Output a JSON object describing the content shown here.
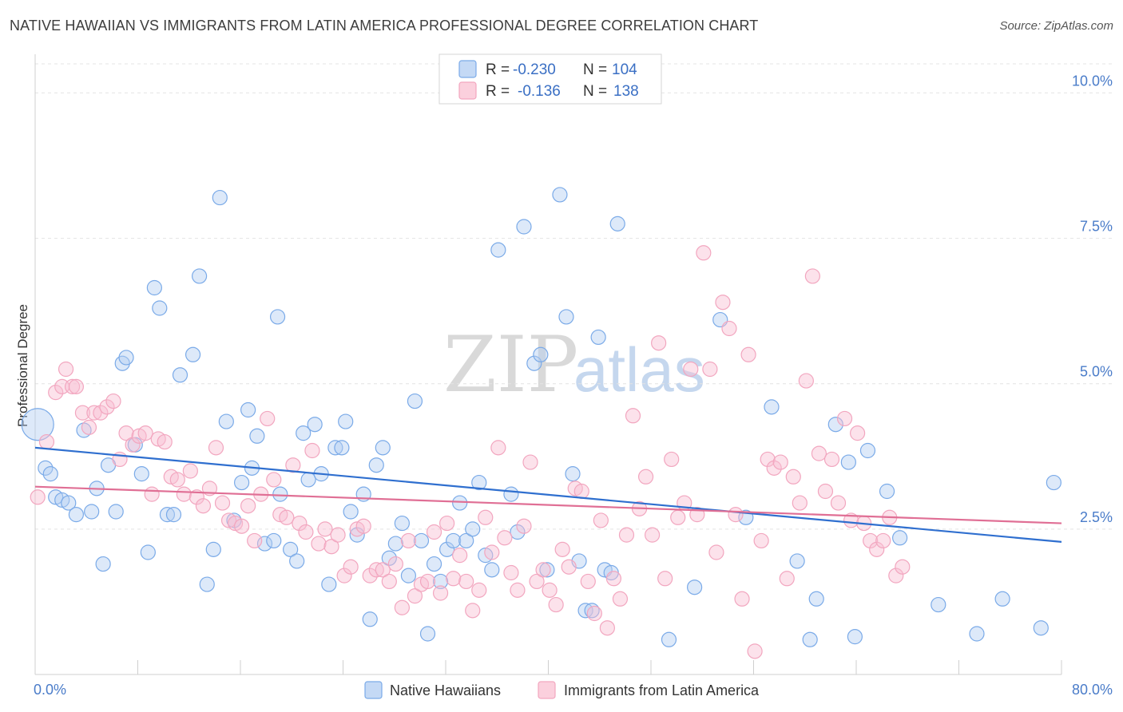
{
  "title": "NATIVE HAWAIIAN VS IMMIGRANTS FROM LATIN AMERICA PROFESSIONAL DEGREE CORRELATION CHART",
  "source": "Source: ZipAtlas.com",
  "watermark": {
    "zip": "ZIP",
    "atlas": "atlas"
  },
  "legend_top": [
    {
      "r_label": "R =",
      "r_value": "-0.230",
      "n_label": "N =",
      "n_value": "104",
      "color": "#7aaae8"
    },
    {
      "r_label": "R =",
      "r_value": "-0.136",
      "n_label": "N =",
      "n_value": "138",
      "color": "#f2a6bf"
    }
  ],
  "legend_bottom": [
    {
      "label": "Native Hawaiians",
      "color": "#7aaae8"
    },
    {
      "label": "Immigrants from Latin America",
      "color": "#f2a6bf"
    }
  ],
  "chart_data": {
    "type": "scatter",
    "title": "NATIVE HAWAIIAN VS IMMIGRANTS FROM LATIN AMERICA PROFESSIONAL DEGREE CORRELATION CHART",
    "xlabel": "",
    "ylabel": "Professional Degree",
    "xlim": [
      0,
      80
    ],
    "ylim": [
      0,
      10.5
    ],
    "x_tick_labels": [
      "0.0%",
      "80.0%"
    ],
    "y_ticks": [
      2.5,
      5.0,
      7.5,
      10.0
    ],
    "y_tick_labels": [
      "2.5%",
      "5.0%",
      "7.5%",
      "10.0%"
    ],
    "grid": true,
    "legend_position": "top-center",
    "series": [
      {
        "name": "Native Hawaiians",
        "color": "#7aaae8",
        "line_color": "#2f6fcf",
        "trend": {
          "x": [
            0,
            80
          ],
          "y": [
            3.9,
            2.28
          ]
        },
        "points": [
          [
            0.2,
            4.3
          ],
          [
            0.8,
            3.55
          ],
          [
            1.2,
            3.45
          ],
          [
            1.6,
            3.05
          ],
          [
            2.1,
            3.0
          ],
          [
            2.6,
            2.95
          ],
          [
            3.2,
            2.75
          ],
          [
            3.8,
            4.2
          ],
          [
            4.4,
            2.8
          ],
          [
            4.8,
            3.2
          ],
          [
            5.3,
            1.9
          ],
          [
            5.7,
            3.6
          ],
          [
            6.3,
            2.8
          ],
          [
            6.8,
            5.35
          ],
          [
            7.1,
            5.45
          ],
          [
            7.8,
            3.95
          ],
          [
            8.3,
            3.45
          ],
          [
            8.8,
            2.1
          ],
          [
            9.3,
            6.65
          ],
          [
            9.7,
            6.3
          ],
          [
            10.3,
            2.75
          ],
          [
            10.8,
            2.75
          ],
          [
            11.3,
            5.15
          ],
          [
            12.3,
            5.5
          ],
          [
            12.8,
            6.85
          ],
          [
            13.4,
            1.55
          ],
          [
            13.9,
            2.15
          ],
          [
            14.4,
            8.2
          ],
          [
            14.9,
            4.35
          ],
          [
            15.5,
            2.65
          ],
          [
            16.1,
            3.3
          ],
          [
            16.6,
            4.55
          ],
          [
            16.9,
            3.55
          ],
          [
            17.3,
            4.1
          ],
          [
            17.9,
            2.25
          ],
          [
            18.6,
            2.3
          ],
          [
            18.9,
            6.15
          ],
          [
            19.1,
            3.1
          ],
          [
            19.9,
            2.15
          ],
          [
            20.4,
            1.95
          ],
          [
            20.9,
            4.15
          ],
          [
            21.3,
            3.35
          ],
          [
            21.8,
            4.3
          ],
          [
            22.3,
            3.45
          ],
          [
            22.9,
            1.55
          ],
          [
            23.4,
            3.9
          ],
          [
            23.9,
            3.9
          ],
          [
            24.2,
            4.35
          ],
          [
            24.6,
            2.8
          ],
          [
            25.1,
            2.4
          ],
          [
            25.6,
            3.1
          ],
          [
            26.1,
            0.95
          ],
          [
            26.6,
            3.6
          ],
          [
            27.1,
            3.9
          ],
          [
            27.6,
            2.0
          ],
          [
            28.1,
            2.25
          ],
          [
            28.6,
            2.6
          ],
          [
            29.1,
            1.7
          ],
          [
            29.6,
            4.7
          ],
          [
            30.1,
            2.3
          ],
          [
            30.6,
            0.7
          ],
          [
            31.1,
            1.9
          ],
          [
            31.6,
            1.6
          ],
          [
            32.1,
            2.15
          ],
          [
            32.6,
            2.3
          ],
          [
            33.1,
            2.95
          ],
          [
            33.6,
            2.3
          ],
          [
            34.1,
            2.5
          ],
          [
            34.6,
            3.3
          ],
          [
            35.1,
            2.05
          ],
          [
            35.6,
            1.8
          ],
          [
            36.1,
            7.3
          ],
          [
            37.1,
            3.1
          ],
          [
            37.6,
            2.45
          ],
          [
            38.1,
            7.7
          ],
          [
            38.9,
            5.35
          ],
          [
            39.4,
            5.5
          ],
          [
            39.9,
            1.8
          ],
          [
            40.9,
            8.25
          ],
          [
            41.4,
            6.15
          ],
          [
            41.9,
            3.45
          ],
          [
            42.4,
            1.95
          ],
          [
            42.9,
            1.1
          ],
          [
            43.4,
            1.1
          ],
          [
            43.9,
            5.8
          ],
          [
            44.4,
            1.8
          ],
          [
            44.9,
            1.75
          ],
          [
            45.4,
            7.75
          ],
          [
            49.4,
            0.6
          ],
          [
            51.4,
            1.5
          ],
          [
            53.4,
            6.1
          ],
          [
            55.4,
            2.7
          ],
          [
            57.4,
            4.6
          ],
          [
            59.4,
            1.95
          ],
          [
            60.4,
            0.6
          ],
          [
            60.9,
            1.3
          ],
          [
            62.4,
            4.3
          ],
          [
            63.4,
            3.65
          ],
          [
            63.9,
            0.65
          ],
          [
            64.9,
            3.85
          ],
          [
            66.4,
            3.15
          ],
          [
            67.4,
            2.35
          ],
          [
            70.4,
            1.2
          ],
          [
            73.4,
            0.7
          ],
          [
            75.4,
            1.3
          ],
          [
            78.4,
            0.8
          ],
          [
            79.4,
            3.3
          ]
        ]
      },
      {
        "name": "Immigrants from Latin America",
        "color": "#f2a6bf",
        "line_color": "#e06f95",
        "trend": {
          "x": [
            0,
            80
          ],
          "y": [
            3.23,
            2.6
          ]
        },
        "points": [
          [
            0.2,
            3.05
          ],
          [
            0.9,
            4.0
          ],
          [
            1.6,
            4.85
          ],
          [
            2.1,
            4.95
          ],
          [
            2.4,
            5.25
          ],
          [
            2.9,
            4.95
          ],
          [
            3.2,
            4.95
          ],
          [
            3.7,
            4.5
          ],
          [
            4.2,
            4.25
          ],
          [
            4.6,
            4.5
          ],
          [
            5.1,
            4.5
          ],
          [
            5.6,
            4.6
          ],
          [
            6.1,
            4.7
          ],
          [
            6.6,
            3.7
          ],
          [
            7.1,
            4.15
          ],
          [
            7.6,
            3.95
          ],
          [
            8.1,
            4.1
          ],
          [
            8.6,
            4.15
          ],
          [
            9.1,
            3.1
          ],
          [
            9.6,
            4.05
          ],
          [
            10.1,
            4.0
          ],
          [
            10.6,
            3.4
          ],
          [
            11.1,
            3.35
          ],
          [
            11.6,
            3.1
          ],
          [
            12.1,
            3.5
          ],
          [
            12.6,
            3.05
          ],
          [
            13.1,
            2.9
          ],
          [
            13.6,
            3.2
          ],
          [
            14.1,
            3.9
          ],
          [
            14.6,
            2.95
          ],
          [
            15.1,
            2.65
          ],
          [
            15.6,
            2.6
          ],
          [
            16.1,
            2.55
          ],
          [
            16.6,
            2.9
          ],
          [
            17.1,
            2.3
          ],
          [
            17.6,
            3.1
          ],
          [
            18.1,
            4.4
          ],
          [
            18.6,
            3.35
          ],
          [
            19.1,
            2.75
          ],
          [
            19.6,
            2.7
          ],
          [
            20.1,
            3.6
          ],
          [
            20.6,
            2.6
          ],
          [
            21.1,
            2.45
          ],
          [
            21.6,
            3.85
          ],
          [
            22.1,
            2.25
          ],
          [
            22.6,
            2.5
          ],
          [
            23.1,
            2.2
          ],
          [
            23.6,
            2.4
          ],
          [
            24.1,
            1.7
          ],
          [
            24.6,
            1.85
          ],
          [
            25.1,
            2.5
          ],
          [
            25.6,
            2.55
          ],
          [
            26.1,
            1.7
          ],
          [
            26.6,
            1.8
          ],
          [
            27.1,
            1.8
          ],
          [
            27.6,
            1.6
          ],
          [
            28.1,
            1.9
          ],
          [
            28.6,
            1.15
          ],
          [
            29.1,
            2.3
          ],
          [
            29.6,
            1.35
          ],
          [
            30.1,
            1.55
          ],
          [
            30.6,
            1.6
          ],
          [
            31.1,
            2.45
          ],
          [
            31.6,
            1.4
          ],
          [
            32.1,
            2.6
          ],
          [
            32.6,
            1.65
          ],
          [
            33.1,
            2.05
          ],
          [
            33.6,
            1.6
          ],
          [
            34.1,
            1.1
          ],
          [
            34.6,
            1.45
          ],
          [
            35.1,
            2.7
          ],
          [
            35.6,
            2.1
          ],
          [
            36.1,
            3.9
          ],
          [
            36.6,
            2.35
          ],
          [
            37.1,
            1.75
          ],
          [
            37.6,
            1.45
          ],
          [
            38.1,
            2.55
          ],
          [
            38.6,
            3.65
          ],
          [
            39.1,
            1.6
          ],
          [
            39.6,
            1.8
          ],
          [
            40.1,
            1.45
          ],
          [
            40.6,
            1.2
          ],
          [
            41.1,
            2.15
          ],
          [
            41.6,
            1.85
          ],
          [
            42.1,
            3.2
          ],
          [
            42.6,
            3.15
          ],
          [
            43.1,
            1.6
          ],
          [
            43.6,
            1.05
          ],
          [
            44.1,
            2.65
          ],
          [
            44.6,
            0.8
          ],
          [
            45.1,
            1.65
          ],
          [
            45.6,
            1.3
          ],
          [
            46.1,
            2.4
          ],
          [
            46.6,
            4.45
          ],
          [
            47.1,
            2.85
          ],
          [
            47.6,
            3.4
          ],
          [
            48.1,
            2.4
          ],
          [
            48.6,
            5.7
          ],
          [
            49.1,
            1.65
          ],
          [
            49.6,
            3.7
          ],
          [
            50.1,
            2.7
          ],
          [
            50.6,
            2.95
          ],
          [
            51.1,
            5.25
          ],
          [
            51.6,
            2.75
          ],
          [
            52.1,
            7.25
          ],
          [
            52.6,
            5.25
          ],
          [
            53.1,
            2.1
          ],
          [
            53.6,
            6.4
          ],
          [
            54.1,
            5.95
          ],
          [
            54.6,
            2.75
          ],
          [
            55.1,
            1.3
          ],
          [
            55.6,
            5.5
          ],
          [
            56.1,
            0.4
          ],
          [
            56.6,
            2.3
          ],
          [
            57.1,
            3.7
          ],
          [
            57.6,
            3.55
          ],
          [
            58.1,
            3.65
          ],
          [
            58.6,
            1.65
          ],
          [
            59.1,
            3.4
          ],
          [
            59.6,
            2.95
          ],
          [
            60.1,
            5.05
          ],
          [
            60.6,
            6.85
          ],
          [
            61.1,
            3.8
          ],
          [
            61.6,
            3.15
          ],
          [
            62.1,
            3.7
          ],
          [
            62.6,
            2.95
          ],
          [
            63.1,
            4.4
          ],
          [
            63.6,
            2.65
          ],
          [
            64.1,
            4.15
          ],
          [
            64.6,
            2.6
          ],
          [
            65.1,
            2.3
          ],
          [
            65.6,
            2.15
          ],
          [
            66.1,
            2.3
          ],
          [
            66.6,
            2.7
          ],
          [
            67.1,
            1.7
          ],
          [
            67.6,
            1.85
          ]
        ]
      }
    ]
  }
}
